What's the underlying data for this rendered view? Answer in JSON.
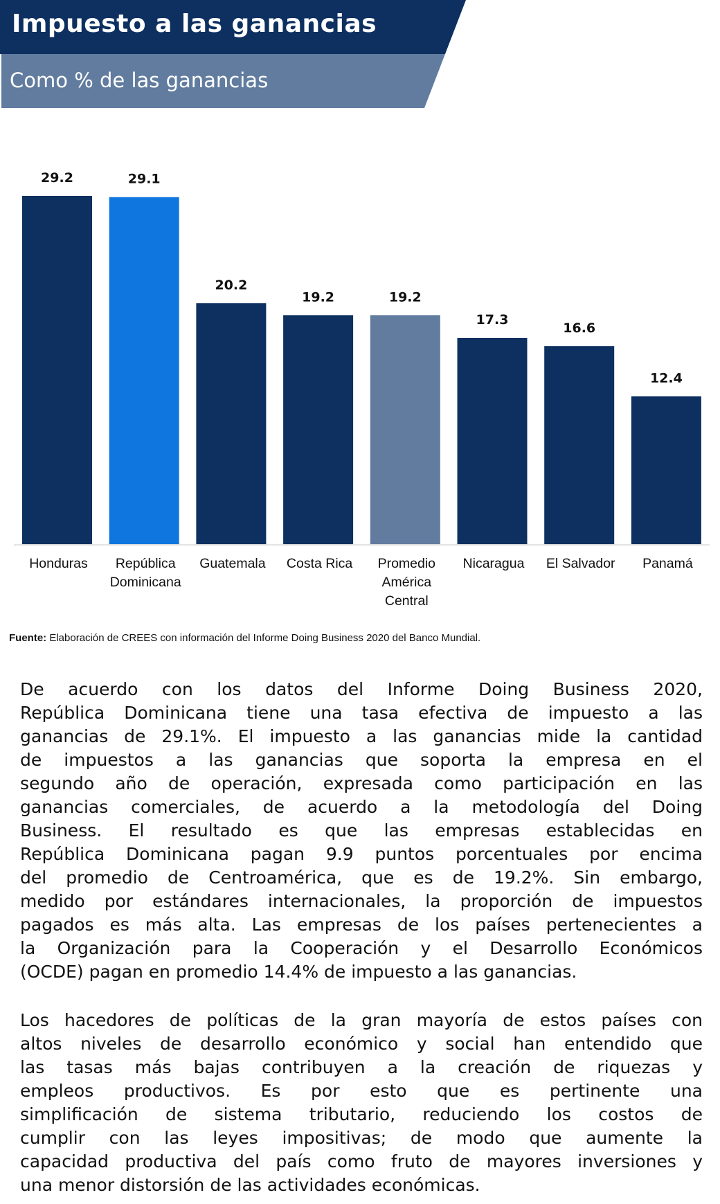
{
  "header": {
    "title": "Impuesto a las ganancias",
    "subtitle": "Como % de las ganancias"
  },
  "colors": {
    "dark": "#0d3060",
    "highlight": "#0f76df",
    "average": "#617c9f",
    "subtitle_band": "#617c9f"
  },
  "chart_data": {
    "type": "bar",
    "title": "Impuesto a las ganancias",
    "subtitle": "Como % de las ganancias",
    "categories": [
      [
        "Honduras"
      ],
      [
        "República",
        "Dominicana"
      ],
      [
        "Guatemala"
      ],
      [
        "Costa Rica"
      ],
      [
        "Promedio",
        "América",
        "Central"
      ],
      [
        "Nicaragua"
      ],
      [
        "El Salvador"
      ],
      [
        "Panamá"
      ]
    ],
    "values": [
      29.2,
      29.1,
      20.2,
      19.2,
      19.2,
      17.3,
      16.6,
      12.4
    ],
    "value_labels": [
      "29.2",
      "29.1",
      "20.2",
      "19.2",
      "19.2",
      "17.3",
      "16.6",
      "12.4"
    ],
    "bar_colors": [
      "#0d3060",
      "#0f76df",
      "#0d3060",
      "#0d3060",
      "#617c9f",
      "#0d3060",
      "#0d3060",
      "#0d3060"
    ],
    "xlabel": "",
    "ylabel": "",
    "ylim": [
      0,
      29.2
    ],
    "grid": false,
    "legend": "none"
  },
  "source": {
    "label": "Fuente:",
    "text": " Elaboración de CREES con información del Informe Doing Business 2020 del Banco Mundial."
  },
  "body": {
    "paragraph1": [
      "De acuerdo con los datos del Informe Doing Business 2020,",
      "República Dominicana tiene una tasa efectiva de impuesto a las",
      "ganancias de 29.1%. El impuesto a las ganancias mide la cantidad",
      "de impuestos a las ganancias que soporta la empresa en el",
      "segundo año de operación, expresada como participación en las",
      "ganancias comerciales, de acuerdo a la metodología del Doing",
      "Business. El resultado es que las empresas establecidas en",
      "República Dominicana pagan 9.9 puntos porcentuales por encima",
      "del promedio de Centroamérica, que es de 19.2%. Sin embargo,",
      "medido por estándares internacionales, la proporción de impuestos",
      "pagados es más alta. Las empresas de los países pertenecientes a",
      "la Organización para la Cooperación y el Desarrollo Económicos",
      "(OCDE) pagan en promedio 14.4% de impuesto a las ganancias."
    ],
    "paragraph2": [
      "Los hacedores de políticas de la gran mayoría de estos países con",
      "altos niveles de desarrollo económico y social han entendido que",
      "las tasas más bajas contribuyen a la creación de riquezas y",
      "empleos productivos. Es por esto que es pertinente una",
      "simplificación de sistema tributario, reduciendo los costos de",
      "cumplir con las leyes impositivas; de modo que aumente la",
      "capacidad productiva del país como fruto de mayores inversiones y",
      "una menor distorsión de las actividades económicas."
    ]
  }
}
